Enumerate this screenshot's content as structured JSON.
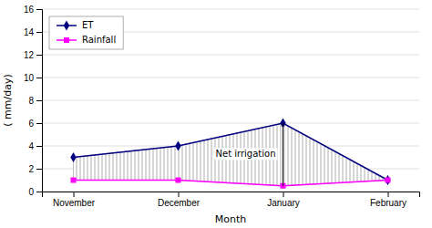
{
  "chart_data": {
    "type": "line",
    "categories": [
      "November",
      "December",
      "January",
      "February"
    ],
    "series": [
      {
        "name": "ET",
        "color": "#000080",
        "marker": "diamond",
        "values": [
          3,
          4,
          6,
          1
        ]
      },
      {
        "name": "Rainfall",
        "color": "#FF00FF",
        "marker": "square",
        "values": [
          1,
          1,
          0.5,
          1
        ]
      }
    ],
    "xlabel": "Month",
    "ylabel": "( mm/day)",
    "ylim": [
      0,
      16
    ],
    "yticks": [
      0,
      2,
      4,
      6,
      8,
      10,
      12,
      14,
      16
    ],
    "grid": true,
    "legend": "upper left",
    "annotation": {
      "text": "Net irrigation",
      "x": "January"
    }
  }
}
